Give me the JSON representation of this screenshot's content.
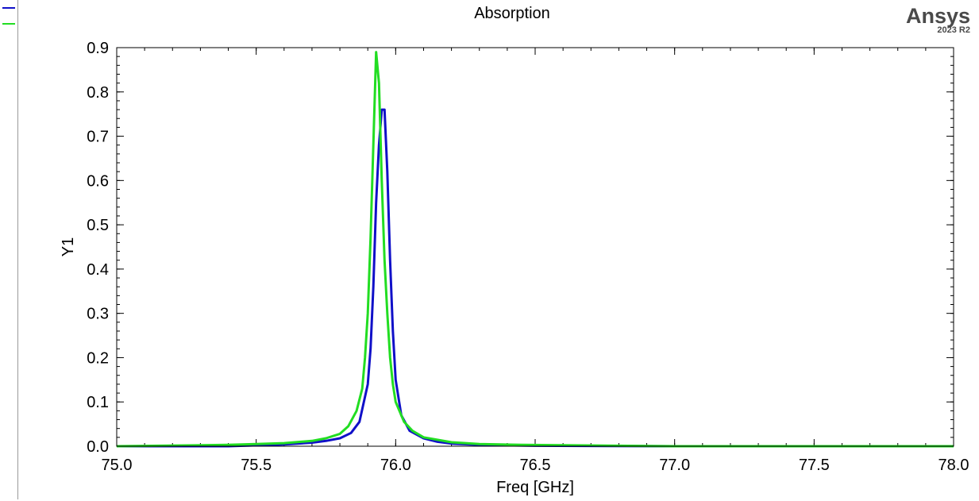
{
  "chart_data": {
    "type": "line",
    "title": "Absorption",
    "xlabel": "Freq [GHz]",
    "ylabel": "Y1",
    "xlim": [
      75.0,
      78.0
    ],
    "ylim": [
      0.0,
      0.9
    ],
    "x_ticks": [
      "75.0",
      "75.5",
      "76.0",
      "76.5",
      "77.0",
      "77.5",
      "78.0"
    ],
    "y_ticks": [
      "0.0",
      "0.1",
      "0.2",
      "0.3",
      "0.4",
      "0.5",
      "0.6",
      "0.7",
      "0.8",
      "0.9"
    ],
    "grid": false,
    "legend_position": "left",
    "series": [
      {
        "color": "#1010c8",
        "x": [
          75.0,
          75.4,
          75.5,
          75.6,
          75.7,
          75.75,
          75.8,
          75.84,
          75.87,
          75.9,
          75.91,
          75.92,
          75.93,
          75.94,
          75.95,
          75.96,
          75.97,
          75.98,
          75.99,
          76.0,
          76.02,
          76.05,
          76.1,
          76.15,
          76.2,
          76.3,
          76.4,
          76.5,
          77.0,
          78.0
        ],
        "y": [
          0.0,
          0.0,
          0.002,
          0.004,
          0.008,
          0.012,
          0.018,
          0.03,
          0.055,
          0.14,
          0.22,
          0.36,
          0.55,
          0.68,
          0.76,
          0.76,
          0.62,
          0.42,
          0.26,
          0.15,
          0.07,
          0.035,
          0.018,
          0.01,
          0.006,
          0.003,
          0.002,
          0.001,
          0.0,
          0.0
        ]
      },
      {
        "color": "#22dd22",
        "x": [
          75.0,
          75.4,
          75.5,
          75.6,
          75.7,
          75.75,
          75.8,
          75.83,
          75.86,
          75.88,
          75.89,
          75.9,
          75.91,
          75.92,
          75.93,
          75.94,
          75.95,
          75.96,
          75.97,
          75.98,
          75.99,
          76.0,
          76.03,
          76.06,
          76.1,
          76.2,
          76.3,
          76.45,
          77.0,
          78.0
        ],
        "y": [
          0.0,
          0.003,
          0.005,
          0.007,
          0.012,
          0.018,
          0.028,
          0.045,
          0.08,
          0.13,
          0.2,
          0.3,
          0.47,
          0.68,
          0.89,
          0.82,
          0.6,
          0.42,
          0.3,
          0.2,
          0.14,
          0.1,
          0.055,
          0.035,
          0.02,
          0.009,
          0.005,
          0.003,
          0.0,
          0.0
        ]
      }
    ]
  },
  "brand": {
    "name": "Ansys",
    "version": "2023 R2"
  }
}
